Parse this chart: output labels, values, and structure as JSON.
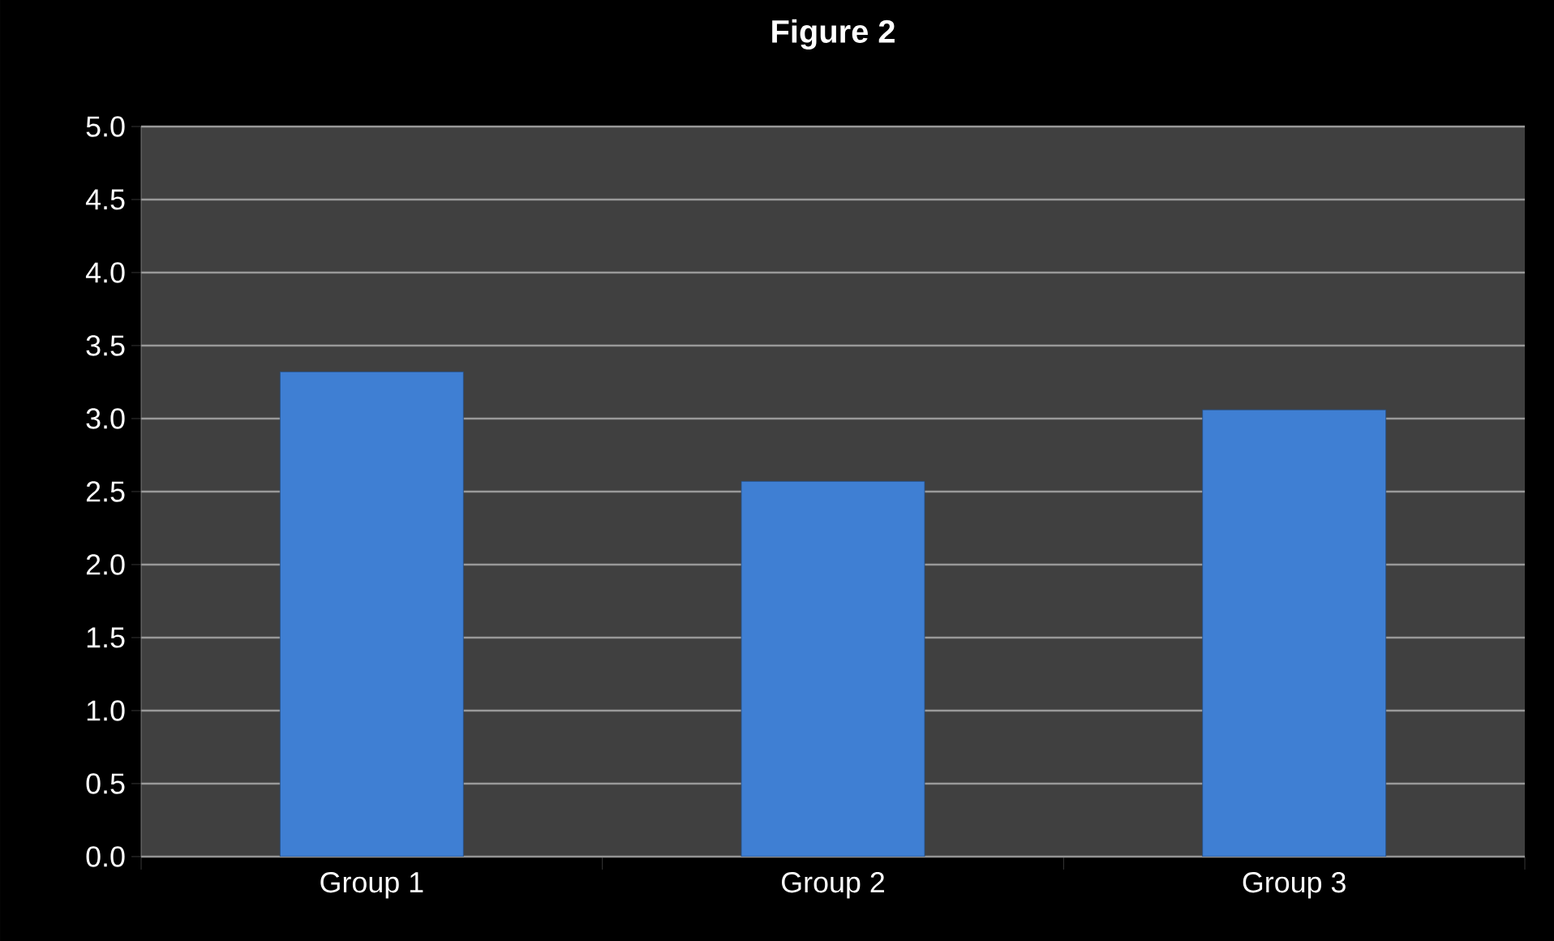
{
  "chart_data": {
    "type": "bar",
    "title": "Figure 2",
    "categories": [
      "Group 1",
      "Group 2",
      "Group 3"
    ],
    "values": [
      3.32,
      2.57,
      3.06
    ],
    "color": "#3f7fd3",
    "ylim": [
      0,
      5
    ],
    "yticks": [
      {
        "value": 0,
        "label": "0.0"
      },
      {
        "value": 0.5,
        "label": "0.5"
      },
      {
        "value": 1,
        "label": "1.0"
      },
      {
        "value": 1.5,
        "label": "1.5"
      },
      {
        "value": 2,
        "label": "2.0"
      },
      {
        "value": 2.5,
        "label": "2.5"
      },
      {
        "value": 3,
        "label": "3.0"
      },
      {
        "value": 3.5,
        "label": "3.5"
      },
      {
        "value": 4,
        "label": "4.0"
      },
      {
        "value": 4.5,
        "label": "4.5"
      },
      {
        "value": 5,
        "label": "5.0"
      }
    ],
    "grid": "y"
  }
}
